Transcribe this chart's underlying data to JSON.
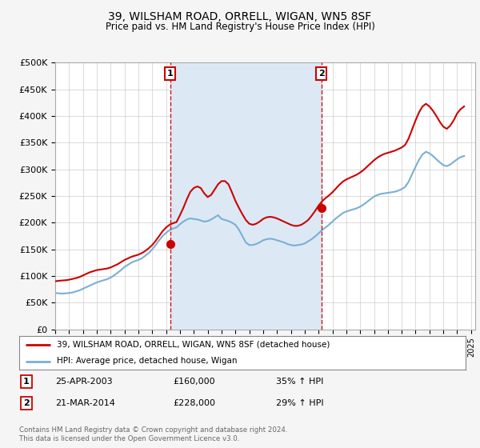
{
  "title": "39, WILSHAM ROAD, ORRELL, WIGAN, WN5 8SF",
  "subtitle": "Price paid vs. HM Land Registry's House Price Index (HPI)",
  "ylim": [
    0,
    500000
  ],
  "yticks": [
    0,
    50000,
    100000,
    150000,
    200000,
    250000,
    300000,
    350000,
    400000,
    450000,
    500000
  ],
  "ytick_labels": [
    "£0",
    "£50K",
    "£100K",
    "£150K",
    "£200K",
    "£250K",
    "£300K",
    "£350K",
    "£400K",
    "£450K",
    "£500K"
  ],
  "xlim_start": 1995.0,
  "xlim_end": 2025.3,
  "sale1_x": 2003.3,
  "sale1_y": 160000,
  "sale2_x": 2014.2,
  "sale2_y": 228000,
  "sale1_label": "25-APR-2003",
  "sale1_price": "£160,000",
  "sale1_hpi": "35% ↑ HPI",
  "sale2_label": "21-MAR-2014",
  "sale2_price": "£228,000",
  "sale2_hpi": "29% ↑ HPI",
  "legend_line1": "39, WILSHAM ROAD, ORRELL, WIGAN, WN5 8SF (detached house)",
  "legend_line2": "HPI: Average price, detached house, Wigan",
  "footer1": "Contains HM Land Registry data © Crown copyright and database right 2024.",
  "footer2": "This data is licensed under the Open Government Licence v3.0.",
  "red_color": "#cc0000",
  "blue_color": "#7aafd4",
  "shade_color": "#dce9f5",
  "bg_color": "#f5f5f5",
  "plot_bg": "#ffffff",
  "hpi_years": [
    1995.0,
    1995.25,
    1995.5,
    1995.75,
    1996.0,
    1996.25,
    1996.5,
    1996.75,
    1997.0,
    1997.25,
    1997.5,
    1997.75,
    1998.0,
    1998.25,
    1998.5,
    1998.75,
    1999.0,
    1999.25,
    1999.5,
    1999.75,
    2000.0,
    2000.25,
    2000.5,
    2000.75,
    2001.0,
    2001.25,
    2001.5,
    2001.75,
    2002.0,
    2002.25,
    2002.5,
    2002.75,
    2003.0,
    2003.25,
    2003.5,
    2003.75,
    2004.0,
    2004.25,
    2004.5,
    2004.75,
    2005.0,
    2005.25,
    2005.5,
    2005.75,
    2006.0,
    2006.25,
    2006.5,
    2006.75,
    2007.0,
    2007.25,
    2007.5,
    2007.75,
    2008.0,
    2008.25,
    2008.5,
    2008.75,
    2009.0,
    2009.25,
    2009.5,
    2009.75,
    2010.0,
    2010.25,
    2010.5,
    2010.75,
    2011.0,
    2011.25,
    2011.5,
    2011.75,
    2012.0,
    2012.25,
    2012.5,
    2012.75,
    2013.0,
    2013.25,
    2013.5,
    2013.75,
    2014.0,
    2014.25,
    2014.5,
    2014.75,
    2015.0,
    2015.25,
    2015.5,
    2015.75,
    2016.0,
    2016.25,
    2016.5,
    2016.75,
    2017.0,
    2017.25,
    2017.5,
    2017.75,
    2018.0,
    2018.25,
    2018.5,
    2018.75,
    2019.0,
    2019.25,
    2019.5,
    2019.75,
    2020.0,
    2020.25,
    2020.5,
    2020.75,
    2021.0,
    2021.25,
    2021.5,
    2021.75,
    2022.0,
    2022.25,
    2022.5,
    2022.75,
    2023.0,
    2023.25,
    2023.5,
    2023.75,
    2024.0,
    2024.25,
    2024.5
  ],
  "hpi_values": [
    68000,
    67500,
    67000,
    67500,
    68000,
    69000,
    71000,
    73000,
    76000,
    79000,
    82000,
    85000,
    88000,
    90000,
    92000,
    94000,
    97000,
    101000,
    106000,
    111000,
    117000,
    121000,
    125000,
    128000,
    130000,
    133000,
    138000,
    143000,
    150000,
    158000,
    167000,
    175000,
    181000,
    186000,
    189000,
    191000,
    197000,
    202000,
    206000,
    208000,
    207000,
    206000,
    204000,
    202000,
    203000,
    206000,
    210000,
    214000,
    207000,
    205000,
    203000,
    200000,
    196000,
    187000,
    175000,
    163000,
    158000,
    158000,
    160000,
    163000,
    167000,
    169000,
    170000,
    169000,
    167000,
    165000,
    163000,
    160000,
    158000,
    157000,
    158000,
    159000,
    161000,
    165000,
    169000,
    174000,
    180000,
    186000,
    191000,
    196000,
    202000,
    208000,
    213000,
    218000,
    221000,
    223000,
    225000,
    227000,
    230000,
    234000,
    239000,
    244000,
    249000,
    252000,
    254000,
    255000,
    256000,
    257000,
    258000,
    260000,
    263000,
    267000,
    277000,
    291000,
    305000,
    318000,
    328000,
    333000,
    330000,
    325000,
    319000,
    313000,
    308000,
    306000,
    309000,
    314000,
    319000,
    323000,
    325000
  ],
  "red_years": [
    1995.0,
    1995.25,
    1995.5,
    1995.75,
    1996.0,
    1996.25,
    1996.5,
    1996.75,
    1997.0,
    1997.25,
    1997.5,
    1997.75,
    1998.0,
    1998.25,
    1998.5,
    1998.75,
    1999.0,
    1999.25,
    1999.5,
    1999.75,
    2000.0,
    2000.25,
    2000.5,
    2000.75,
    2001.0,
    2001.25,
    2001.5,
    2001.75,
    2002.0,
    2002.25,
    2002.5,
    2002.75,
    2003.0,
    2003.25,
    2003.5,
    2003.75,
    2004.0,
    2004.25,
    2004.5,
    2004.75,
    2005.0,
    2005.25,
    2005.5,
    2005.75,
    2006.0,
    2006.25,
    2006.5,
    2006.75,
    2007.0,
    2007.25,
    2007.5,
    2007.75,
    2008.0,
    2008.25,
    2008.5,
    2008.75,
    2009.0,
    2009.25,
    2009.5,
    2009.75,
    2010.0,
    2010.25,
    2010.5,
    2010.75,
    2011.0,
    2011.25,
    2011.5,
    2011.75,
    2012.0,
    2012.25,
    2012.5,
    2012.75,
    2013.0,
    2013.25,
    2013.5,
    2013.75,
    2014.0,
    2014.25,
    2014.5,
    2014.75,
    2015.0,
    2015.25,
    2015.5,
    2015.75,
    2016.0,
    2016.25,
    2016.5,
    2016.75,
    2017.0,
    2017.25,
    2017.5,
    2017.75,
    2018.0,
    2018.25,
    2018.5,
    2018.75,
    2019.0,
    2019.25,
    2019.5,
    2019.75,
    2020.0,
    2020.25,
    2020.5,
    2020.75,
    2021.0,
    2021.25,
    2021.5,
    2021.75,
    2022.0,
    2022.25,
    2022.5,
    2022.75,
    2023.0,
    2023.25,
    2023.5,
    2023.75,
    2024.0,
    2024.25,
    2024.5
  ],
  "red_values": [
    90000,
    91000,
    91500,
    92000,
    93000,
    94500,
    96000,
    98000,
    101000,
    104000,
    107000,
    109000,
    111000,
    112000,
    113000,
    114000,
    116000,
    119000,
    122000,
    126000,
    130000,
    133000,
    136000,
    138000,
    140000,
    143000,
    147000,
    152000,
    158000,
    166000,
    175000,
    184000,
    191000,
    196000,
    199000,
    201000,
    214000,
    228000,
    244000,
    258000,
    265000,
    268000,
    265000,
    255000,
    248000,
    252000,
    262000,
    272000,
    278000,
    278000,
    272000,
    257000,
    241000,
    228000,
    216000,
    205000,
    198000,
    196000,
    198000,
    202000,
    207000,
    210000,
    211000,
    210000,
    208000,
    205000,
    202000,
    199000,
    196000,
    194000,
    194000,
    196000,
    200000,
    205000,
    213000,
    222000,
    232000,
    240000,
    246000,
    251000,
    257000,
    264000,
    271000,
    277000,
    281000,
    284000,
    287000,
    290000,
    294000,
    299000,
    305000,
    311000,
    317000,
    322000,
    326000,
    329000,
    331000,
    333000,
    335000,
    338000,
    341000,
    346000,
    358000,
    375000,
    392000,
    407000,
    418000,
    423000,
    418000,
    410000,
    400000,
    389000,
    380000,
    376000,
    382000,
    392000,
    405000,
    413000,
    418000
  ]
}
